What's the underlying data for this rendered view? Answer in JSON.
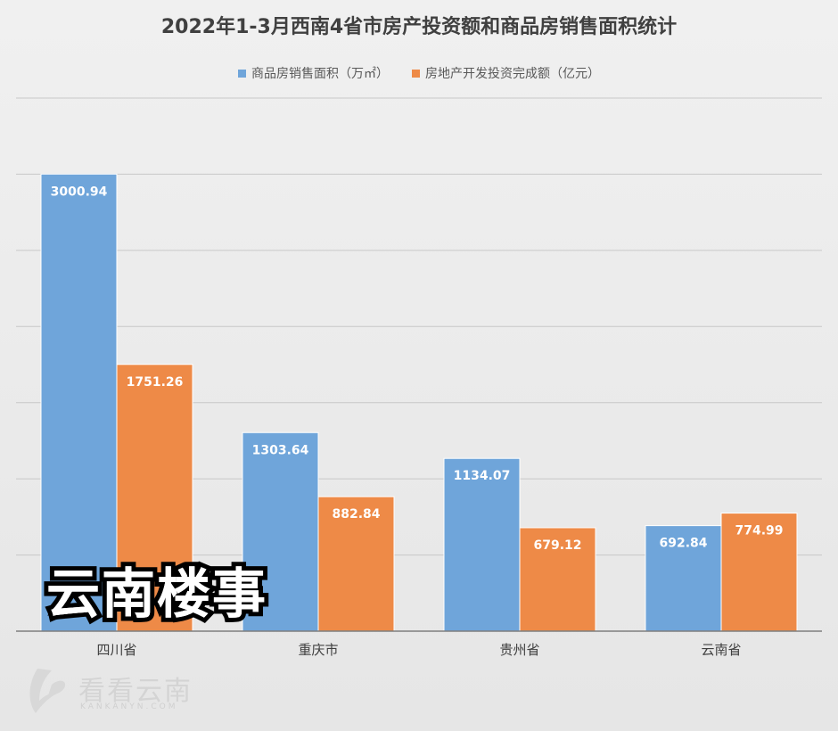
{
  "chart_data": {
    "type": "bar",
    "title": "2022年1-3月西南4省市房产投资额和商品房销售面积统计",
    "categories": [
      "四川省",
      "重庆市",
      "贵州省",
      "云南省"
    ],
    "series": [
      {
        "name": "商品房销售面积（万㎡）",
        "values": [
          3000.94,
          1303.64,
          1134.07,
          692.84
        ],
        "color": "#6fa5da"
      },
      {
        "name": "房地产开发投资完成额（亿元）",
        "values": [
          1751.26,
          882.84,
          679.12,
          774.99
        ],
        "color": "#ee8a47"
      }
    ],
    "ylim": [
      0,
      3500
    ],
    "grid": true,
    "legend_position": "top-center",
    "data_labels": true
  },
  "overlay": {
    "text": "云南楼事"
  },
  "watermark": {
    "text": "看看云南",
    "sub": "KANKANYN.COM"
  }
}
